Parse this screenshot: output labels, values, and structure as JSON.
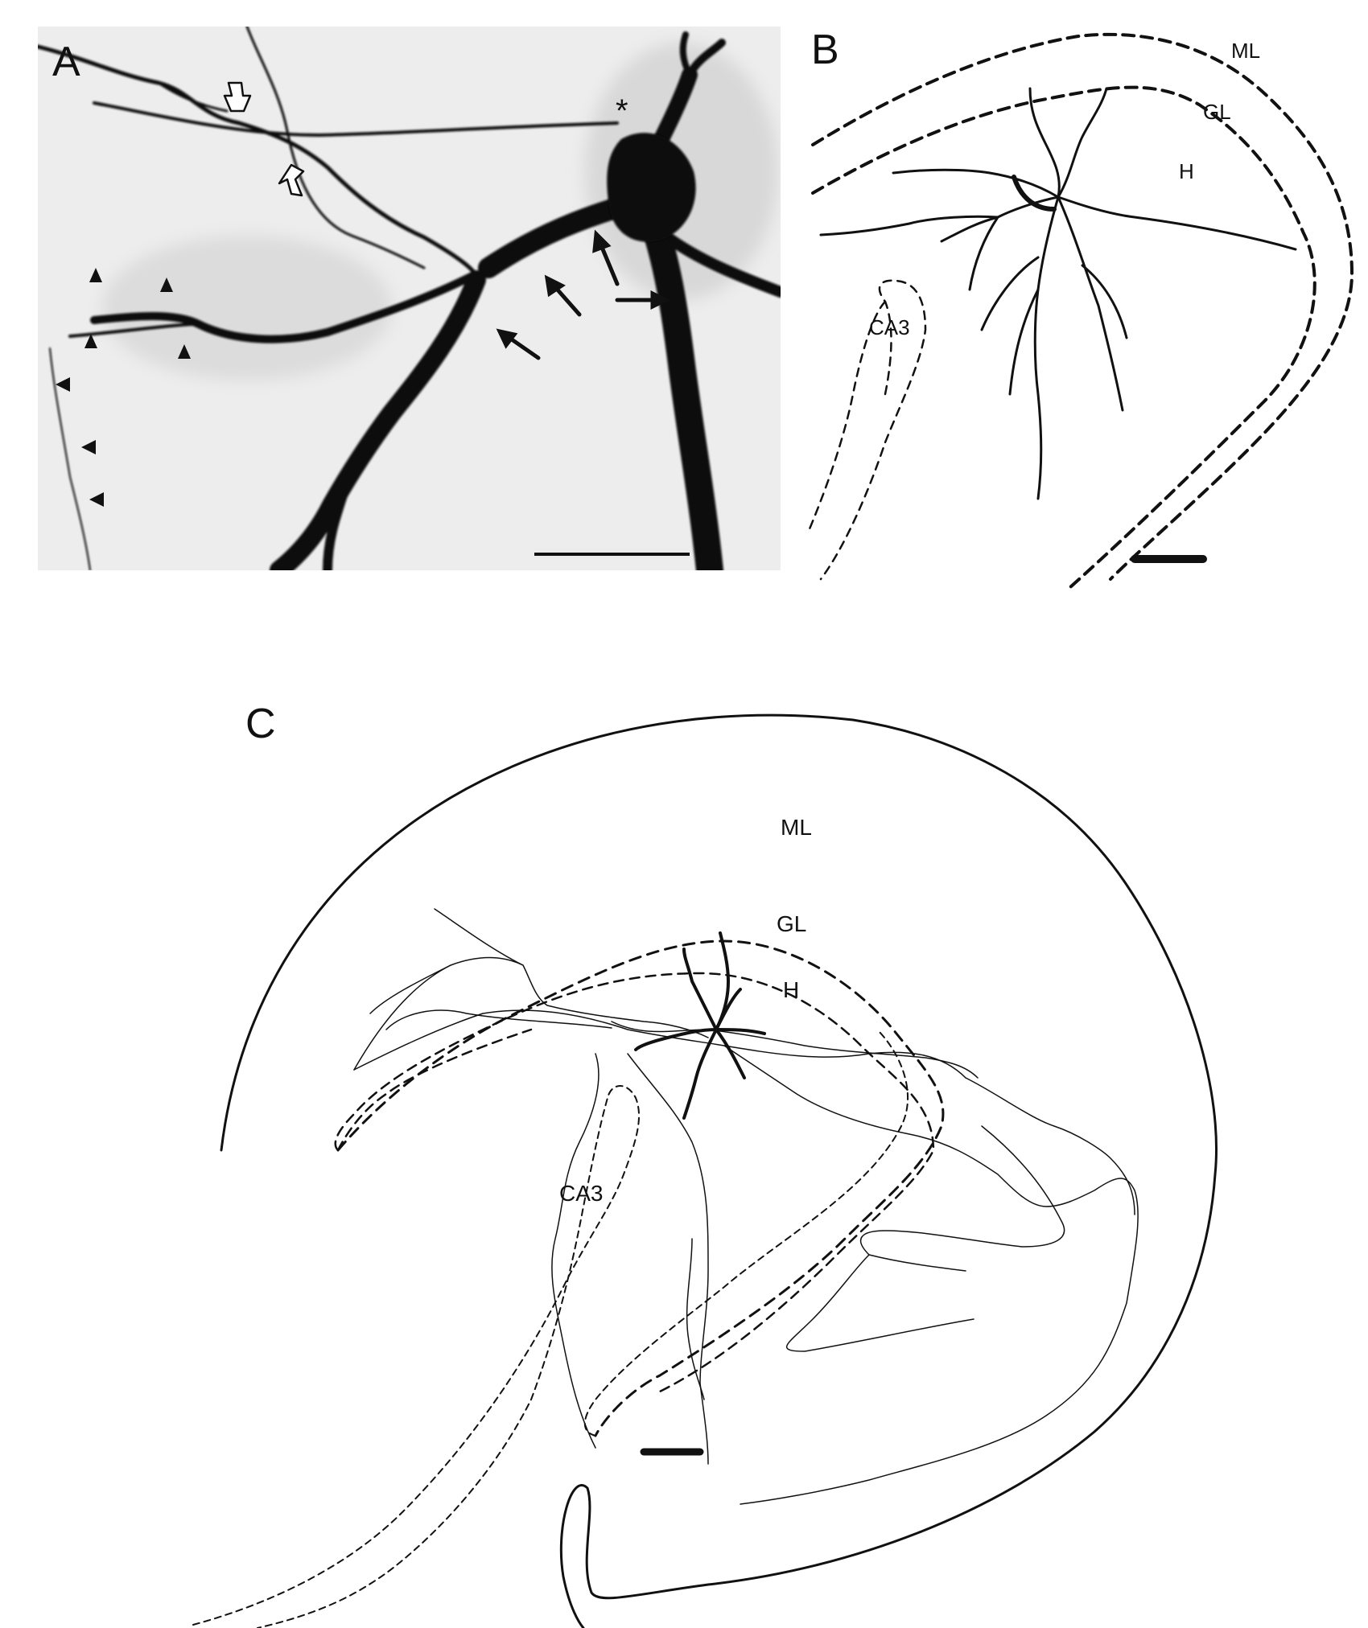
{
  "panels": [
    {
      "letter": "A"
    },
    {
      "letter": "B",
      "regions": [
        "ML",
        "GL",
        "H",
        "CA3"
      ]
    },
    {
      "letter": "C",
      "regions": [
        "ML",
        "GL",
        "H",
        "CA3"
      ]
    }
  ],
  "panel_a": {
    "asterisk": "*"
  }
}
